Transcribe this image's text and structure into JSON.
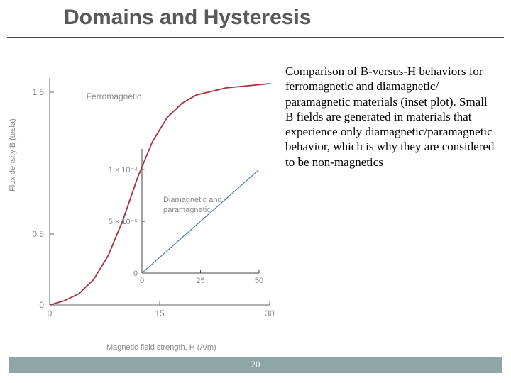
{
  "title": "Domains and Hysteresis",
  "paragraph": "Comparison of  B-versus-H behaviors for ferromagnetic and diamagnetic/ paramagnetic materials (inset plot). Small B fields are generated in materials that experience only diamagnetic/paramagnetic behavior, which is why they are considered to be non-magnetics",
  "page_number": "20",
  "main_chart": {
    "type": "line",
    "ylabel": "Flux density B (tesla)",
    "xlabel": "Magnetic field strength, H (A/m)",
    "series_label": "Ferromagnetic",
    "series_color": "#a8323c",
    "axis_color": "#666666",
    "tick_color": "#666666",
    "label_color": "#888888",
    "x_range": [
      0,
      30
    ],
    "y_range": [
      0,
      1.6
    ],
    "x_ticks": [
      0,
      15,
      30
    ],
    "x_tick_labels": [
      "0",
      "15",
      "30"
    ],
    "y_ticks": [
      0,
      0.5,
      1.5
    ],
    "y_tick_labels": [
      "0",
      "0.5",
      "1.5"
    ],
    "line_width": 1.8,
    "curve_points": [
      [
        0,
        0
      ],
      [
        2,
        0.03
      ],
      [
        4,
        0.08
      ],
      [
        6,
        0.18
      ],
      [
        8,
        0.35
      ],
      [
        10,
        0.6
      ],
      [
        12,
        0.9
      ],
      [
        14,
        1.15
      ],
      [
        16,
        1.32
      ],
      [
        18,
        1.42
      ],
      [
        20,
        1.48
      ],
      [
        24,
        1.53
      ],
      [
        28,
        1.55
      ],
      [
        30,
        1.56
      ]
    ]
  },
  "inset_chart": {
    "type": "line",
    "series_label": "Diamagnetic and paramagnetic",
    "series_color": "#4a7cb0",
    "axis_color": "#444444",
    "label_color": "#888888",
    "x_range": [
      0,
      50
    ],
    "y_range": [
      0,
      0.00012
    ],
    "x_ticks": [
      0,
      25,
      50
    ],
    "x_tick_labels": [
      "0",
      "25",
      "50"
    ],
    "y_ticks": [
      0,
      5e-05,
      0.0001
    ],
    "y_tick_labels": [
      "0",
      "5 × 10⁻⁵",
      "1 × 10⁻⁴"
    ],
    "line_width": 1.2,
    "line_points": [
      [
        0,
        0
      ],
      [
        50,
        0.0001
      ]
    ]
  },
  "footer": {
    "bar_color": "#8fa6a6"
  }
}
